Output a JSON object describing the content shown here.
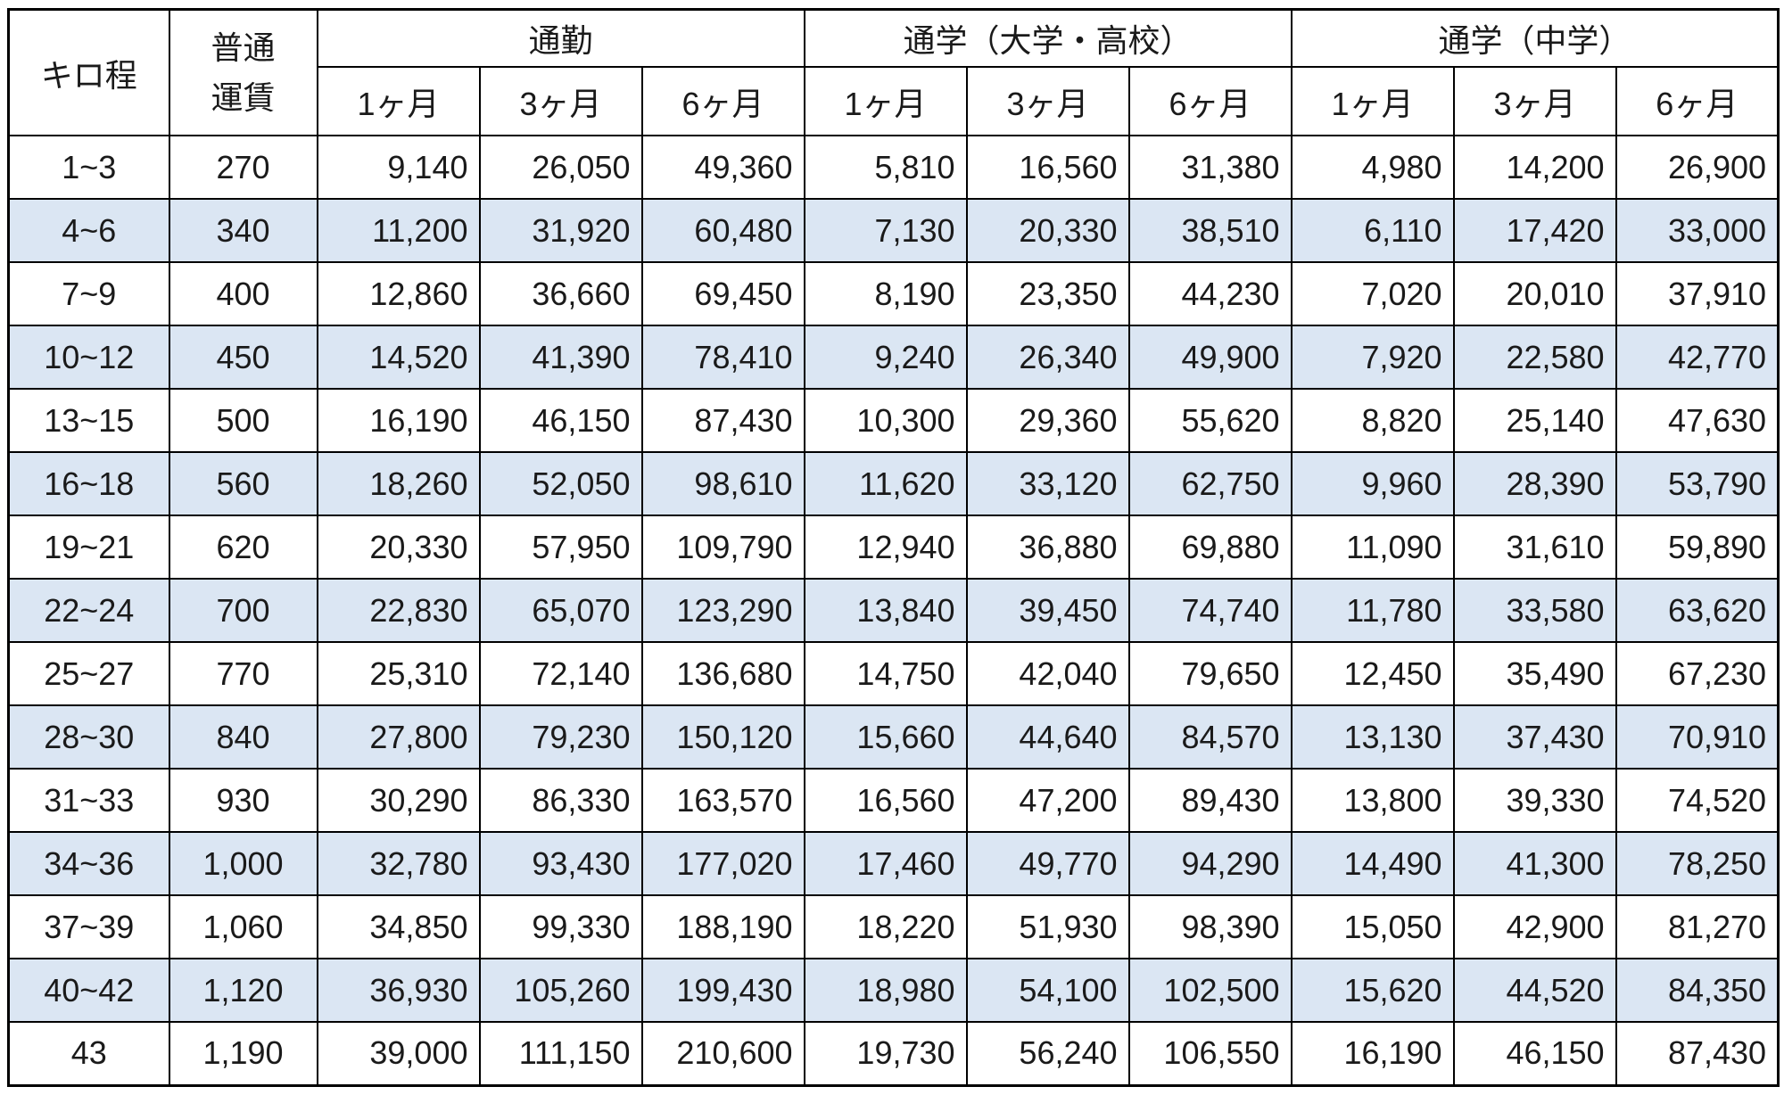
{
  "table": {
    "header": {
      "kilo_label": "キロ程",
      "regular_fare_lines": [
        "普通",
        "運賃"
      ],
      "groups": [
        {
          "label": "通勤",
          "months": [
            "1ヶ月",
            "3ヶ月",
            "6ヶ月"
          ]
        },
        {
          "label": "通学（大学・高校）",
          "months": [
            "1ヶ月",
            "3ヶ月",
            "6ヶ月"
          ]
        },
        {
          "label": "通学（中学）",
          "months": [
            "1ヶ月",
            "3ヶ月",
            "6ヶ月"
          ]
        }
      ]
    },
    "rows": [
      {
        "range": "1~3",
        "fare": "270",
        "values": [
          "9,140",
          "26,050",
          "49,360",
          "5,810",
          "16,560",
          "31,380",
          "4,980",
          "14,200",
          "26,900"
        ]
      },
      {
        "range": "4~6",
        "fare": "340",
        "values": [
          "11,200",
          "31,920",
          "60,480",
          "7,130",
          "20,330",
          "38,510",
          "6,110",
          "17,420",
          "33,000"
        ]
      },
      {
        "range": "7~9",
        "fare": "400",
        "values": [
          "12,860",
          "36,660",
          "69,450",
          "8,190",
          "23,350",
          "44,230",
          "7,020",
          "20,010",
          "37,910"
        ]
      },
      {
        "range": "10~12",
        "fare": "450",
        "values": [
          "14,520",
          "41,390",
          "78,410",
          "9,240",
          "26,340",
          "49,900",
          "7,920",
          "22,580",
          "42,770"
        ]
      },
      {
        "range": "13~15",
        "fare": "500",
        "values": [
          "16,190",
          "46,150",
          "87,430",
          "10,300",
          "29,360",
          "55,620",
          "8,820",
          "25,140",
          "47,630"
        ]
      },
      {
        "range": "16~18",
        "fare": "560",
        "values": [
          "18,260",
          "52,050",
          "98,610",
          "11,620",
          "33,120",
          "62,750",
          "9,960",
          "28,390",
          "53,790"
        ]
      },
      {
        "range": "19~21",
        "fare": "620",
        "values": [
          "20,330",
          "57,950",
          "109,790",
          "12,940",
          "36,880",
          "69,880",
          "11,090",
          "31,610",
          "59,890"
        ]
      },
      {
        "range": "22~24",
        "fare": "700",
        "values": [
          "22,830",
          "65,070",
          "123,290",
          "13,840",
          "39,450",
          "74,740",
          "11,780",
          "33,580",
          "63,620"
        ]
      },
      {
        "range": "25~27",
        "fare": "770",
        "values": [
          "25,310",
          "72,140",
          "136,680",
          "14,750",
          "42,040",
          "79,650",
          "12,450",
          "35,490",
          "67,230"
        ]
      },
      {
        "range": "28~30",
        "fare": "840",
        "values": [
          "27,800",
          "79,230",
          "150,120",
          "15,660",
          "44,640",
          "84,570",
          "13,130",
          "37,430",
          "70,910"
        ]
      },
      {
        "range": "31~33",
        "fare": "930",
        "values": [
          "30,290",
          "86,330",
          "163,570",
          "16,560",
          "47,200",
          "89,430",
          "13,800",
          "39,330",
          "74,520"
        ]
      },
      {
        "range": "34~36",
        "fare": "1,000",
        "values": [
          "32,780",
          "93,430",
          "177,020",
          "17,460",
          "49,770",
          "94,290",
          "14,490",
          "41,300",
          "78,250"
        ]
      },
      {
        "range": "37~39",
        "fare": "1,060",
        "values": [
          "34,850",
          "99,330",
          "188,190",
          "18,220",
          "51,930",
          "98,390",
          "15,050",
          "42,900",
          "81,270"
        ]
      },
      {
        "range": "40~42",
        "fare": "1,120",
        "values": [
          "36,930",
          "105,260",
          "199,430",
          "18,980",
          "54,100",
          "102,500",
          "15,620",
          "44,520",
          "84,350"
        ]
      },
      {
        "range": "43",
        "fare": "1,190",
        "values": [
          "39,000",
          "111,150",
          "210,600",
          "19,730",
          "56,240",
          "106,550",
          "16,190",
          "46,150",
          "87,430"
        ]
      }
    ],
    "colors": {
      "stripe_blue": "#dbe6f3",
      "border": "#000000",
      "background": "#ffffff",
      "text": "#1a1a1a"
    }
  }
}
